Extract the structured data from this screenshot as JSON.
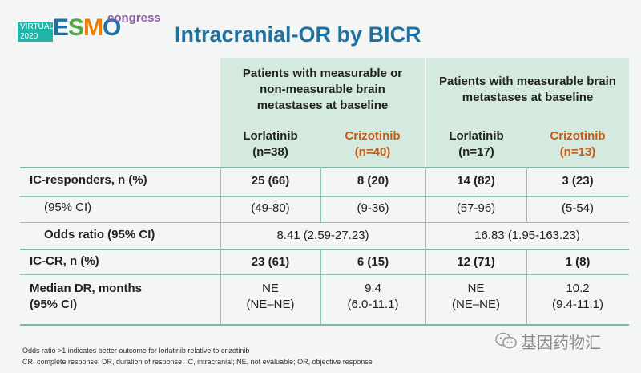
{
  "logo": {
    "virtual_line1": "VIRTUAL",
    "virtual_line2": "2020",
    "esmo": [
      "E",
      "S",
      "M",
      "O"
    ],
    "congress": "congress"
  },
  "title": "Intracranial-OR by BICR",
  "groups": [
    {
      "line1": "Patients with measurable or",
      "line2": "non-measurable brain",
      "line3": "metastases at baseline"
    },
    {
      "line1": "Patients with measurable brain",
      "line2": "metastases at baseline"
    }
  ],
  "columns": [
    {
      "drug": "Lorlatinib",
      "n": "(n=38)"
    },
    {
      "drug": "Crizotinib",
      "n": "(n=40)"
    },
    {
      "drug": "Lorlatinib",
      "n": "(n=17)"
    },
    {
      "drug": "Crizotinib",
      "n": "(n=13)"
    }
  ],
  "rows": {
    "ic_responders": {
      "label": "IC-responders, n (%)",
      "values": [
        "25 (66)",
        "8 (20)",
        "14 (82)",
        "3 (23)"
      ]
    },
    "ci": {
      "label": "(95% CI)",
      "values": [
        "(49-80)",
        "(9-36)",
        "(57-96)",
        "(5-54)"
      ]
    },
    "odds": {
      "label": "Odds ratio (95% CI)",
      "values": [
        "8.41 (2.59-27.23)",
        "16.83 (1.95-163.23)"
      ]
    },
    "ic_cr": {
      "label": "IC-CR, n (%)",
      "values": [
        "23 (61)",
        "6 (15)",
        "12 (71)",
        "1 (8)"
      ]
    },
    "median_dr": {
      "label_line1": "Median DR, months",
      "label_line2": "(95% CI)",
      "values": [
        {
          "l1": "NE",
          "l2": "(NE–NE)"
        },
        {
          "l1": "9.4",
          "l2": "(6.0-11.1)"
        },
        {
          "l1": "NE",
          "l2": "(NE–NE)"
        },
        {
          "l1": "10.2",
          "l2": "(9.4-11.1)"
        }
      ]
    }
  },
  "footnotes": [
    "Odds ratio >1 indicates better outcome for lorlatinib relative to crizotinib",
    "CR, complete response; DR, duration of response; IC, intracranial; NE, not evaluable; OR, objective response"
  ],
  "watermark": "基因药物汇",
  "colors": {
    "title": "#1e72a0",
    "header_bg": "#d4eadf",
    "crizotinib": "#c55a11",
    "rule": "#8fc3ba"
  }
}
